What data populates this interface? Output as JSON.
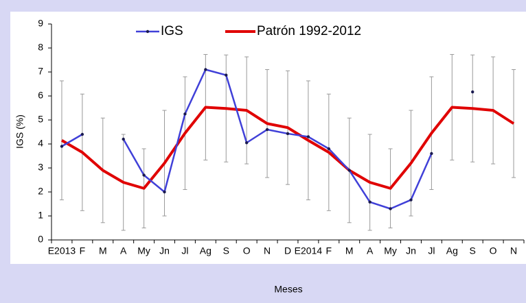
{
  "chart_data": {
    "type": "line",
    "y_label": "IGS (%)",
    "x_label": "Meses",
    "categories": [
      "E2013",
      "F",
      "M",
      "A",
      "My",
      "Jn",
      "Jl",
      "Ag",
      "S",
      "O",
      "N",
      "D",
      "E2014",
      "F",
      "M",
      "A",
      "My",
      "Jn",
      "Jl",
      "Ag",
      "S",
      "O",
      "N"
    ],
    "ylim": [
      0,
      9
    ],
    "yticks": [
      0,
      1,
      2,
      3,
      4,
      5,
      6,
      7,
      8,
      9
    ],
    "legend": "top",
    "series": [
      {
        "name": "IGS",
        "color": "#4040d8",
        "values": [
          3.9,
          4.4,
          null,
          4.2,
          2.7,
          2.0,
          5.25,
          7.1,
          6.87,
          4.05,
          4.6,
          4.43,
          4.3,
          3.8,
          2.9,
          1.58,
          1.3,
          1.67,
          3.6,
          null,
          6.17,
          null,
          null
        ]
      },
      {
        "name": "Patrón 1992-2012",
        "color": "#e00000",
        "values": [
          4.15,
          3.65,
          2.9,
          2.4,
          2.15,
          3.2,
          4.45,
          5.53,
          5.48,
          5.4,
          4.85,
          4.68,
          4.15,
          3.65,
          2.9,
          2.4,
          2.15,
          3.2,
          4.45,
          5.53,
          5.48,
          5.4,
          4.85
        ],
        "errors": [
          2.48,
          2.43,
          2.18,
          2.0,
          1.65,
          2.2,
          2.35,
          2.2,
          2.23,
          2.23,
          2.25,
          2.37,
          2.48,
          2.43,
          2.18,
          2.0,
          1.65,
          2.2,
          2.35,
          2.2,
          2.23,
          2.23,
          2.25
        ]
      }
    ]
  }
}
